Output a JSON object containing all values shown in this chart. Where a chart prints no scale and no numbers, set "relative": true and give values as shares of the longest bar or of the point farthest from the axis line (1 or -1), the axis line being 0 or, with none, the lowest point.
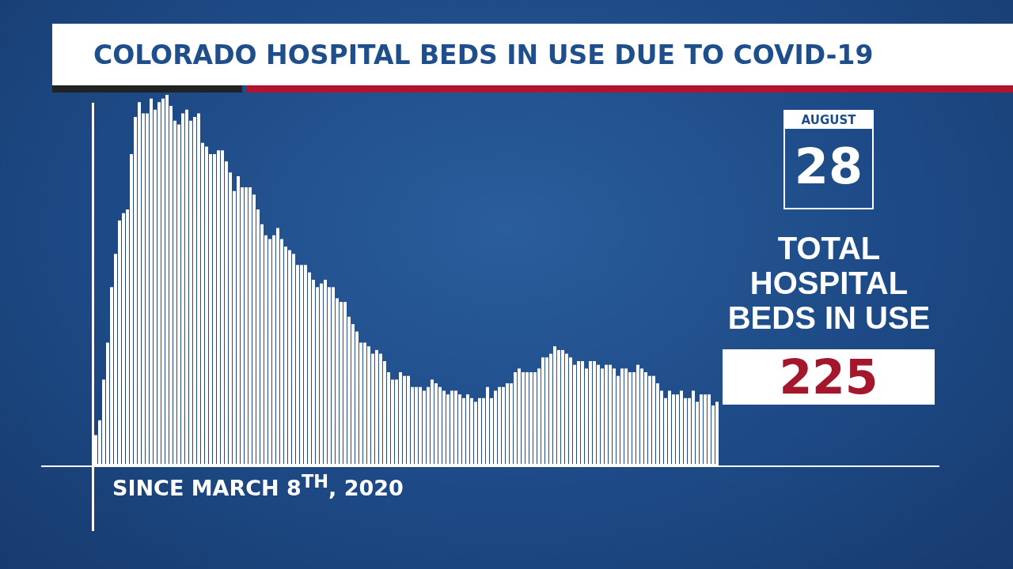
{
  "chart_data": {
    "type": "bar",
    "title": "COLORADO HOSPITAL BEDS IN USE DUE TO COVID-19",
    "xlabel": "SINCE MARCH 8$^{TH}$, 2020",
    "relative": true,
    "color": "#ffffff",
    "annotations": [
      "AUGUST",
      "28",
      "TOTAL HOSPITAL BEDS IN USE",
      "225"
    ],
    "categories": [
      null,
      null,
      null,
      null,
      null,
      null,
      null,
      null,
      null,
      null,
      null,
      null,
      null,
      null,
      null,
      null,
      null,
      null,
      null,
      null,
      null,
      null,
      null,
      null,
      null,
      null,
      null,
      null,
      null,
      null,
      null,
      null,
      null,
      null,
      null,
      null,
      null,
      null,
      null,
      null,
      null,
      null,
      null,
      null,
      null,
      null,
      null,
      null,
      null,
      null,
      null,
      null,
      null,
      null,
      null,
      null,
      null,
      null,
      null,
      null,
      null,
      null,
      null,
      null,
      null,
      null,
      null,
      null,
      null,
      null,
      null,
      null,
      null,
      null,
      null,
      null,
      null,
      null,
      null,
      null,
      null,
      null,
      null,
      null,
      null,
      null,
      null,
      null,
      null,
      null,
      null,
      null,
      null,
      null,
      null,
      null,
      null,
      null,
      null,
      null,
      null,
      null,
      null,
      null,
      null,
      null,
      null,
      null,
      null,
      null,
      null,
      null,
      null,
      null,
      null,
      null,
      null,
      null,
      null,
      null,
      null,
      null,
      null,
      null,
      null,
      null,
      null,
      null,
      null,
      null,
      null,
      null,
      null,
      null,
      null,
      null,
      null,
      null,
      null,
      null,
      null,
      null,
      null,
      null,
      null,
      null,
      null,
      null,
      null,
      null,
      null,
      null,
      null,
      null,
      null,
      null,
      null,
      null
    ],
    "values": [
      0.08,
      0.12,
      0.23,
      0.33,
      0.48,
      0.57,
      0.66,
      0.68,
      0.69,
      0.84,
      0.94,
      0.98,
      0.95,
      0.95,
      0.99,
      0.96,
      0.98,
      0.99,
      1,
      0.97,
      0.93,
      0.92,
      0.95,
      0.96,
      0.93,
      0.94,
      0.95,
      0.87,
      0.86,
      0.84,
      0.84,
      0.85,
      0.85,
      0.82,
      0.79,
      0.74,
      0.78,
      0.75,
      0.75,
      0.75,
      0.73,
      0.69,
      0.65,
      0.62,
      0.61,
      0.62,
      0.64,
      0.61,
      0.59,
      0.58,
      0.57,
      0.54,
      0.54,
      0.54,
      0.52,
      0.5,
      0.48,
      0.49,
      0.5,
      0.48,
      0.48,
      0.45,
      0.44,
      0.44,
      0.4,
      0.38,
      0.36,
      0.33,
      0.33,
      0.32,
      0.3,
      0.31,
      0.3,
      0.28,
      0.25,
      0.23,
      0.23,
      0.25,
      0.24,
      0.24,
      0.21,
      0.21,
      0.21,
      0.2,
      0.21,
      0.23,
      0.22,
      0.21,
      0.2,
      0.19,
      0.2,
      0.2,
      0.19,
      0.18,
      0.19,
      0.18,
      0.17,
      0.18,
      0.18,
      0.21,
      0.18,
      0.2,
      0.21,
      0.21,
      0.22,
      0.22,
      0.25,
      0.26,
      0.25,
      0.25,
      0.25,
      0.25,
      0.26,
      0.29,
      0.29,
      0.3,
      0.32,
      0.31,
      0.31,
      0.3,
      0.29,
      0.27,
      0.28,
      0.28,
      0.26,
      0.28,
      0.28,
      0.27,
      0.26,
      0.27,
      0.27,
      0.26,
      0.24,
      0.26,
      0.26,
      0.25,
      0.25,
      0.27,
      0.26,
      0.25,
      0.24,
      0.24,
      0.22,
      0.2,
      0.18,
      0.2,
      0.19,
      0.19,
      0.2,
      0.18,
      0.18,
      0.2,
      0.17,
      0.19,
      0.19,
      0.19,
      0.16,
      0.17
    ]
  }
}
